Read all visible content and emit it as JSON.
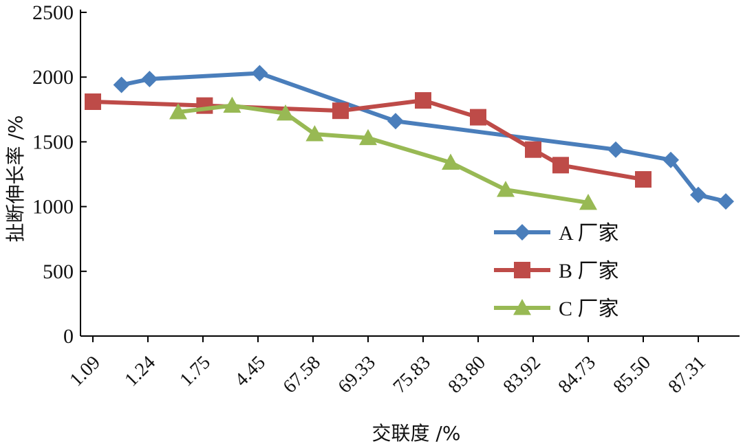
{
  "chart_data": {
    "type": "line",
    "xlabel": "交联度 /%",
    "ylabel": "扯断伸长率 /%",
    "categories": [
      "1.09",
      "1.24",
      "1.75",
      "4.45",
      "67.58",
      "69.33",
      "75.83",
      "83.80",
      "83.92",
      "84.73",
      "85.50",
      "87.31"
    ],
    "ylim": [
      0,
      2500
    ],
    "yticks": [
      "0",
      "500",
      "1000",
      "1500",
      "2000",
      "2500"
    ],
    "grid": false,
    "legend_position": "right",
    "series": [
      {
        "name": "A 厂家",
        "color": "#4a7ebb",
        "marker": "diamond",
        "points": [
          {
            "x": 0.52,
            "y": 1940
          },
          {
            "x": 1.03,
            "y": 1985
          },
          {
            "x": 3.03,
            "y": 2030
          },
          {
            "x": 5.5,
            "y": 1660
          },
          {
            "x": 9.5,
            "y": 1440
          },
          {
            "x": 10.5,
            "y": 1360
          },
          {
            "x": 11.0,
            "y": 1090
          },
          {
            "x": 11.5,
            "y": 1040
          }
        ]
      },
      {
        "name": "B 厂家",
        "color": "#be4b48",
        "marker": "square",
        "points": [
          {
            "x": 0.0,
            "y": 1810
          },
          {
            "x": 2.03,
            "y": 1780
          },
          {
            "x": 4.5,
            "y": 1740
          },
          {
            "x": 6.0,
            "y": 1820
          },
          {
            "x": 7.0,
            "y": 1690
          },
          {
            "x": 8.0,
            "y": 1440
          },
          {
            "x": 8.5,
            "y": 1320
          },
          {
            "x": 10.0,
            "y": 1210
          }
        ]
      },
      {
        "name": "C 厂家",
        "color": "#98b954",
        "marker": "triangle",
        "points": [
          {
            "x": 1.55,
            "y": 1730
          },
          {
            "x": 2.53,
            "y": 1780
          },
          {
            "x": 3.5,
            "y": 1720
          },
          {
            "x": 4.03,
            "y": 1560
          },
          {
            "x": 5.0,
            "y": 1530
          },
          {
            "x": 6.5,
            "y": 1340
          },
          {
            "x": 7.5,
            "y": 1130
          },
          {
            "x": 9.0,
            "y": 1030
          }
        ]
      }
    ]
  }
}
